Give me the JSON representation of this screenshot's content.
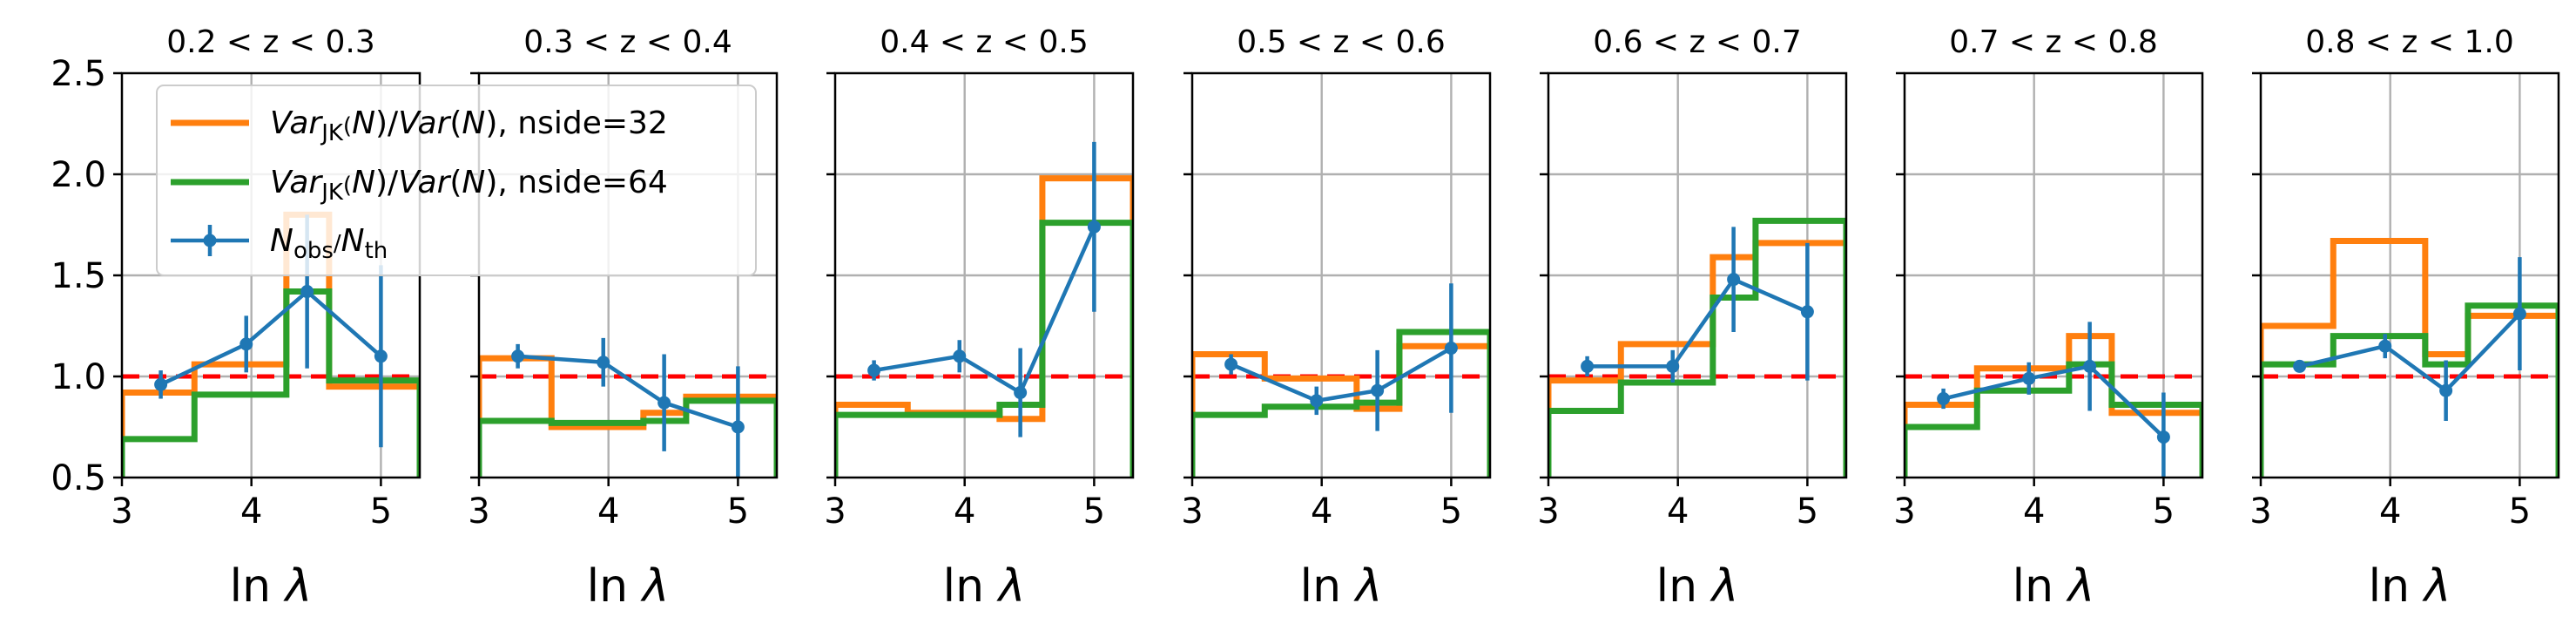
{
  "chart_data": {
    "type": "step+errorbar",
    "ylim": [
      0.5,
      2.5
    ],
    "xlim": [
      3,
      5.3
    ],
    "xticks": [
      3,
      4,
      5
    ],
    "yticks": [
      0.5,
      1.0,
      1.5,
      2.0,
      2.5
    ],
    "ytick_labels": [
      "0.5",
      "1.0",
      "1.5",
      "2.0",
      "2.5"
    ],
    "xlabel": "ln λ",
    "grid": true,
    "reference_line": 1.0,
    "bin_edges": [
      3.0,
      3.56,
      4.27,
      4.6,
      5.3
    ],
    "bin_centers": [
      3.3,
      3.96,
      4.43,
      5.0
    ],
    "legend": {
      "placement": "upper-left (first panel)",
      "entries": [
        {
          "key": "nside32",
          "label": "Var_JK(N)/Var(N), nside=32",
          "color": "#ff7f0e"
        },
        {
          "key": "nside64",
          "label": "Var_JK(N)/Var(N), nside=64",
          "color": "#2ca02c"
        },
        {
          "key": "ratio",
          "label": "N_obs/N_th",
          "color": "#1f77b4"
        }
      ]
    },
    "colors": {
      "nside32": "#ff7f0e",
      "nside64": "#2ca02c",
      "ratio": "#1f77b4",
      "reference": "#ff0000",
      "grid": "#b0b0b0"
    },
    "panels": [
      {
        "title": "0.2 < z < 0.3",
        "nside32": [
          0.92,
          1.06,
          1.8,
          0.95
        ],
        "nside64": [
          0.69,
          0.91,
          1.42,
          0.98
        ],
        "ratio": [
          0.96,
          1.16,
          1.42,
          1.1
        ],
        "ratio_err": [
          0.07,
          0.14,
          0.38,
          0.45
        ]
      },
      {
        "title": "0.3 < z < 0.4",
        "nside32": [
          1.09,
          0.75,
          0.82,
          0.9
        ],
        "nside64": [
          0.78,
          0.77,
          0.78,
          0.88
        ],
        "ratio": [
          1.1,
          1.07,
          0.87,
          0.75
        ],
        "ratio_err": [
          0.06,
          0.12,
          0.24,
          0.3
        ]
      },
      {
        "title": "0.4 < z < 0.5",
        "nside32": [
          0.86,
          0.82,
          0.79,
          1.98
        ],
        "nside64": [
          0.81,
          0.81,
          0.86,
          1.76
        ],
        "ratio": [
          1.03,
          1.1,
          0.92,
          1.74
        ],
        "ratio_err": [
          0.05,
          0.08,
          0.22,
          0.42
        ]
      },
      {
        "title": "0.5 < z < 0.6",
        "nside32": [
          1.11,
          0.99,
          0.84,
          1.15
        ],
        "nside64": [
          0.81,
          0.85,
          0.87,
          1.22
        ],
        "ratio": [
          1.06,
          0.88,
          0.93,
          1.14
        ],
        "ratio_err": [
          0.05,
          0.07,
          0.2,
          0.32
        ]
      },
      {
        "title": "0.6 < z < 0.7",
        "nside32": [
          0.98,
          1.16,
          1.59,
          1.66
        ],
        "nside64": [
          0.83,
          0.97,
          1.39,
          1.77
        ],
        "ratio": [
          1.05,
          1.05,
          1.48,
          1.32
        ],
        "ratio_err": [
          0.05,
          0.08,
          0.26,
          0.34
        ]
      },
      {
        "title": "0.7 < z < 0.8",
        "nside32": [
          0.86,
          1.04,
          1.2,
          0.82
        ],
        "nside64": [
          0.75,
          0.93,
          1.06,
          0.86
        ],
        "ratio": [
          0.89,
          0.99,
          1.05,
          0.7
        ],
        "ratio_err": [
          0.05,
          0.08,
          0.22,
          0.22
        ]
      },
      {
        "title": "0.8 < z < 1.0",
        "nside32": [
          1.25,
          1.67,
          1.11,
          1.3
        ],
        "nside64": [
          1.06,
          1.2,
          1.06,
          1.35
        ],
        "ratio": [
          1.05,
          1.15,
          0.93,
          1.31
        ],
        "ratio_err": [
          0.03,
          0.06,
          0.15,
          0.28
        ]
      }
    ]
  }
}
